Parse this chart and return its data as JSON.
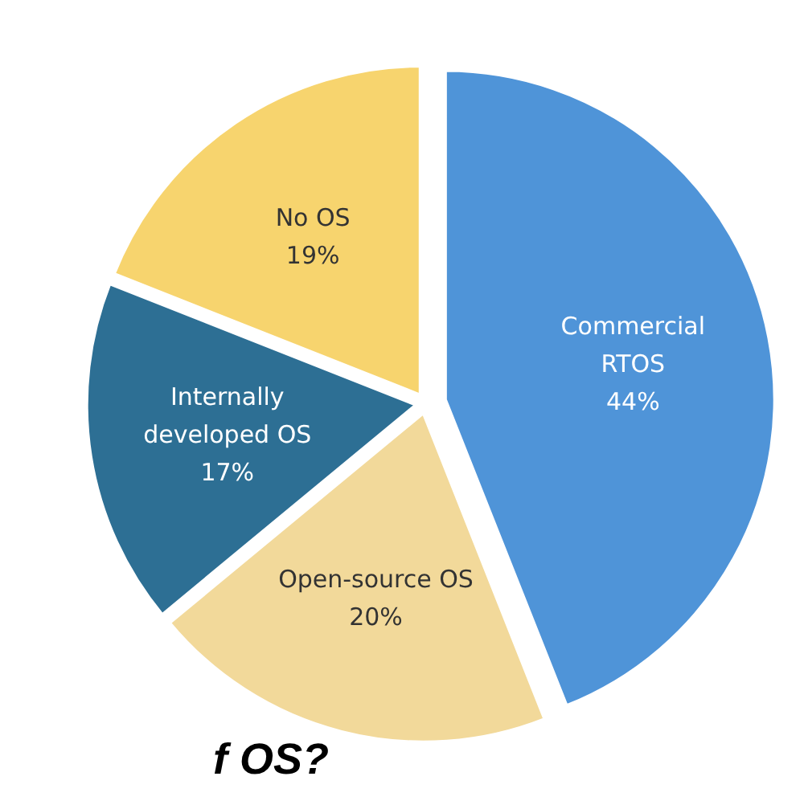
{
  "chart_data": {
    "type": "pie",
    "categories": [
      "Commercial\nRTOS",
      "Open-source OS",
      "Internally\ndeveloped OS",
      "No OS"
    ],
    "values": [
      44,
      20,
      17,
      19
    ],
    "colors": [
      "#4f94d8",
      "#f2d99a",
      "#2d6f94",
      "#f7d46e"
    ],
    "value_labels": [
      "44%",
      "20%",
      "17%",
      "19%"
    ],
    "annotations": [
      "f OS?"
    ]
  }
}
